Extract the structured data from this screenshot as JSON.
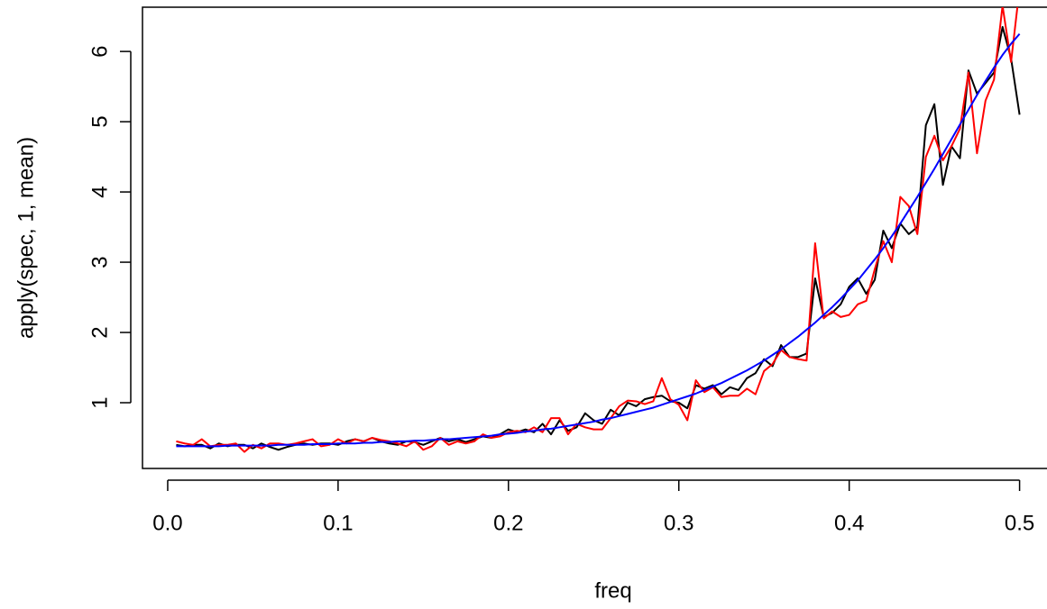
{
  "chart_data": {
    "type": "line",
    "x_label": "freq",
    "y_label": "apply(spec, 1, mean)",
    "x": [
      0.005,
      0.01,
      0.015,
      0.02,
      0.025,
      0.03,
      0.035,
      0.04,
      0.045,
      0.05,
      0.055,
      0.06,
      0.065,
      0.07,
      0.075,
      0.08,
      0.085,
      0.09,
      0.095,
      0.1,
      0.105,
      0.11,
      0.115,
      0.12,
      0.125,
      0.13,
      0.135,
      0.14,
      0.145,
      0.15,
      0.155,
      0.16,
      0.165,
      0.17,
      0.175,
      0.18,
      0.185,
      0.19,
      0.195,
      0.2,
      0.205,
      0.21,
      0.215,
      0.22,
      0.225,
      0.23,
      0.235,
      0.24,
      0.245,
      0.25,
      0.255,
      0.26,
      0.265,
      0.27,
      0.275,
      0.28,
      0.285,
      0.29,
      0.295,
      0.3,
      0.305,
      0.31,
      0.315,
      0.32,
      0.325,
      0.33,
      0.335,
      0.34,
      0.345,
      0.35,
      0.355,
      0.36,
      0.365,
      0.37,
      0.375,
      0.38,
      0.385,
      0.39,
      0.395,
      0.4,
      0.405,
      0.41,
      0.415,
      0.42,
      0.425,
      0.43,
      0.435,
      0.44,
      0.445,
      0.45,
      0.455,
      0.46,
      0.465,
      0.47,
      0.475,
      0.48,
      0.485,
      0.49,
      0.495,
      0.5
    ],
    "series": [
      {
        "color": "#000000",
        "values": [
          0.4,
          0.38,
          0.4,
          0.4,
          0.35,
          0.42,
          0.38,
          0.4,
          0.4,
          0.35,
          0.42,
          0.37,
          0.33,
          0.37,
          0.4,
          0.42,
          0.4,
          0.42,
          0.42,
          0.4,
          0.45,
          0.48,
          0.45,
          0.5,
          0.45,
          0.42,
          0.4,
          0.45,
          0.44,
          0.4,
          0.45,
          0.5,
          0.45,
          0.48,
          0.44,
          0.48,
          0.52,
          0.5,
          0.55,
          0.62,
          0.58,
          0.62,
          0.58,
          0.7,
          0.55,
          0.75,
          0.6,
          0.65,
          0.85,
          0.75,
          0.7,
          0.9,
          0.82,
          1.0,
          0.95,
          1.05,
          1.08,
          1.1,
          1.02,
          1.0,
          0.92,
          1.25,
          1.2,
          1.25,
          1.12,
          1.22,
          1.18,
          1.35,
          1.42,
          1.62,
          1.52,
          1.82,
          1.65,
          1.65,
          1.7,
          2.77,
          2.22,
          2.28,
          2.4,
          2.65,
          2.77,
          2.55,
          2.75,
          3.45,
          3.2,
          3.55,
          3.4,
          3.5,
          4.95,
          5.25,
          4.1,
          4.65,
          4.48,
          5.73,
          5.4,
          5.55,
          5.7,
          6.35,
          5.9,
          5.1
        ]
      },
      {
        "color": "#ff0000",
        "values": [
          0.45,
          0.42,
          0.4,
          0.48,
          0.38,
          0.4,
          0.4,
          0.42,
          0.3,
          0.4,
          0.35,
          0.42,
          0.42,
          0.4,
          0.42,
          0.45,
          0.48,
          0.38,
          0.4,
          0.48,
          0.42,
          0.48,
          0.45,
          0.5,
          0.47,
          0.45,
          0.42,
          0.38,
          0.45,
          0.33,
          0.38,
          0.5,
          0.4,
          0.45,
          0.42,
          0.45,
          0.55,
          0.5,
          0.52,
          0.58,
          0.6,
          0.58,
          0.65,
          0.58,
          0.78,
          0.78,
          0.55,
          0.7,
          0.65,
          0.62,
          0.62,
          0.78,
          0.95,
          1.03,
          1.02,
          0.98,
          1.02,
          1.35,
          1.05,
          0.97,
          0.75,
          1.32,
          1.15,
          1.22,
          1.08,
          1.1,
          1.1,
          1.2,
          1.12,
          1.45,
          1.55,
          1.75,
          1.65,
          1.62,
          1.6,
          3.27,
          2.2,
          2.3,
          2.22,
          2.25,
          2.4,
          2.45,
          2.9,
          3.3,
          3.0,
          3.93,
          3.8,
          3.4,
          4.5,
          4.8,
          4.45,
          4.65,
          4.9,
          5.7,
          4.55,
          5.3,
          5.6,
          6.65,
          5.85,
          6.9
        ]
      },
      {
        "color": "#0000ff",
        "values": [
          0.38,
          0.38,
          0.38,
          0.38,
          0.38,
          0.38,
          0.39,
          0.39,
          0.39,
          0.39,
          0.39,
          0.39,
          0.4,
          0.4,
          0.4,
          0.4,
          0.41,
          0.41,
          0.41,
          0.42,
          0.42,
          0.42,
          0.43,
          0.43,
          0.44,
          0.44,
          0.45,
          0.45,
          0.46,
          0.46,
          0.47,
          0.48,
          0.48,
          0.49,
          0.5,
          0.51,
          0.52,
          0.53,
          0.55,
          0.56,
          0.57,
          0.59,
          0.6,
          0.62,
          0.63,
          0.65,
          0.67,
          0.69,
          0.71,
          0.73,
          0.76,
          0.78,
          0.81,
          0.84,
          0.87,
          0.9,
          0.93,
          0.97,
          1.01,
          1.05,
          1.09,
          1.13,
          1.18,
          1.23,
          1.28,
          1.34,
          1.4,
          1.46,
          1.53,
          1.6,
          1.68,
          1.76,
          1.85,
          1.94,
          2.04,
          2.14,
          2.25,
          2.36,
          2.48,
          2.61,
          2.74,
          2.89,
          3.04,
          3.2,
          3.37,
          3.55,
          3.74,
          3.93,
          4.13,
          4.33,
          4.54,
          4.75,
          4.96,
          5.17,
          5.38,
          5.58,
          5.77,
          5.95,
          6.11,
          6.25
        ]
      }
    ],
    "xlim": [
      -0.0148,
      0.5198
    ],
    "ylim": [
      0.064,
      6.63
    ],
    "xticks": [
      {
        "value": 0,
        "label": "0.0"
      },
      0.1,
      0.2,
      0.3,
      0.4,
      0.5
    ],
    "yticks": [
      1,
      2,
      3,
      4,
      5,
      6
    ]
  }
}
